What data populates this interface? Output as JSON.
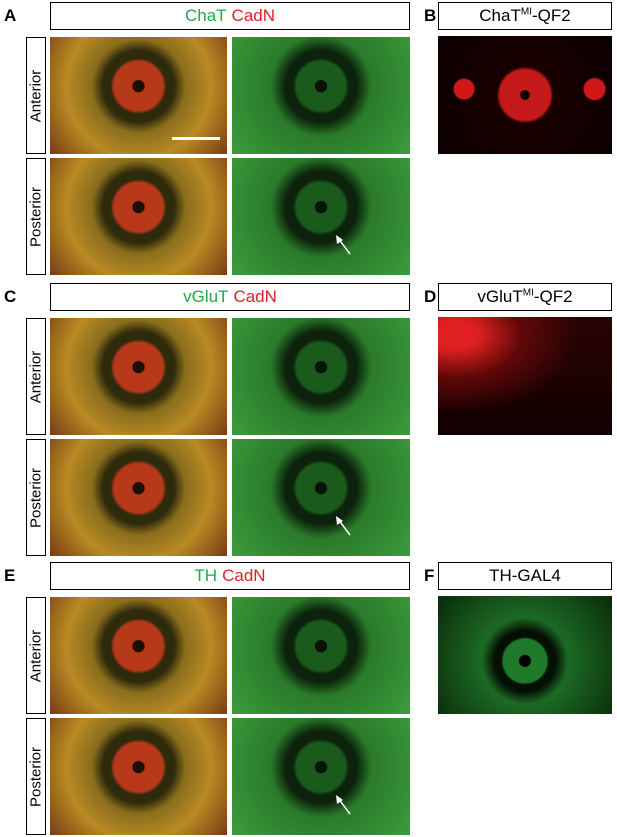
{
  "panels": [
    {
      "label": "A",
      "title": [
        "ChaT",
        "CadN"
      ],
      "rows": [
        "Anterior",
        "Posterior"
      ]
    },
    {
      "label": "B",
      "title": {
        "base": "ChaT",
        "sup": "MI",
        "rest": "-QF2"
      }
    },
    {
      "label": "C",
      "title": [
        "vGluT",
        "CadN"
      ],
      "rows": [
        "Anterior",
        "Posterior"
      ]
    },
    {
      "label": "D",
      "title": {
        "base": "vGluT",
        "sup": "MI",
        "rest": "-QF2"
      }
    },
    {
      "label": "E",
      "title": [
        "TH",
        "CadN"
      ],
      "rows": [
        "Anterior",
        "Posterior"
      ]
    },
    {
      "label": "F",
      "title": {
        "base": "TH-GAL4"
      }
    }
  ]
}
